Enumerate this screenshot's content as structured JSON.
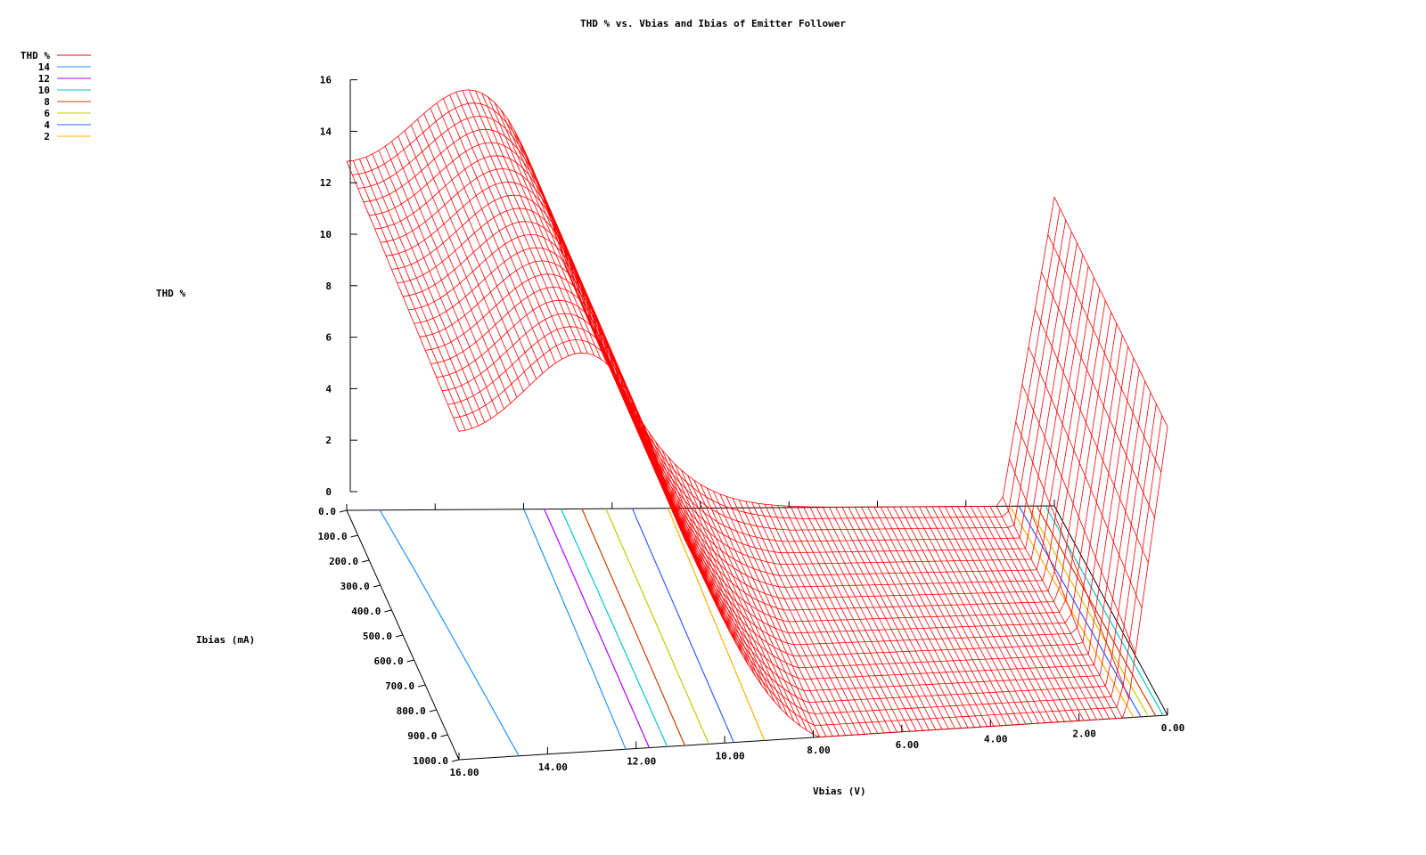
{
  "chart_data": {
    "type": "surface3d",
    "title": "THD % vs. Vbias and Ibias of Emitter Follower",
    "xlabel": "Vbias (V)",
    "ylabel": "Ibias (mA)",
    "zlabel": "THD %",
    "xlim": [
      0,
      16
    ],
    "ylim": [
      0,
      1000
    ],
    "zlim": [
      0,
      16
    ],
    "x_ticks": [
      "16.00",
      "14.00",
      "12.00",
      "10.00",
      "8.00",
      "6.00",
      "4.00",
      "2.00",
      "0.00"
    ],
    "y_ticks": [
      "0.0",
      "100.0",
      "200.0",
      "300.0",
      "400.0",
      "500.0",
      "600.0",
      "700.0",
      "800.0",
      "900.0",
      "1000.0"
    ],
    "z_ticks": [
      "0",
      "2",
      "4",
      "6",
      "8",
      "10",
      "12",
      "14",
      "16"
    ],
    "surface_color": "#ff0000",
    "contour_levels": [
      {
        "level": "14",
        "color": "#1e90ff"
      },
      {
        "level": "12",
        "color": "#b000ff"
      },
      {
        "level": "10",
        "color": "#00c8c8"
      },
      {
        "level": "8",
        "color": "#c84000"
      },
      {
        "level": "6",
        "color": "#c8c800"
      },
      {
        "level": "4",
        "color": "#3060ff"
      },
      {
        "level": "2",
        "color": "#ffb000"
      }
    ],
    "legend_title": "THD %",
    "legend_position": "top-left"
  }
}
